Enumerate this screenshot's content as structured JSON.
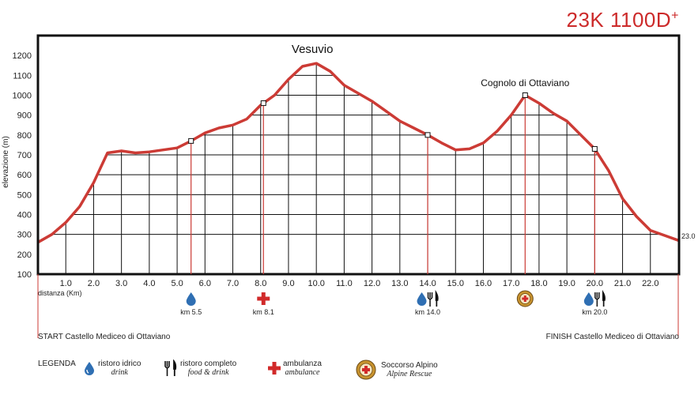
{
  "title": {
    "main": "23K 1100D",
    "sup": "+"
  },
  "chart_data": {
    "type": "area",
    "ylabel": "elevazione (m)",
    "xlabel": "distanza (Km)",
    "xlim": [
      0,
      23
    ],
    "ylim": [
      100,
      1300
    ],
    "xticks": [
      "1.0",
      "2.0",
      "3.0",
      "4.0",
      "5.0",
      "6.0",
      "7.0",
      "8.0",
      "9.0",
      "10.0",
      "11.0",
      "12.0",
      "13.0",
      "14.0",
      "15.0",
      "16.0",
      "17.0",
      "18.0",
      "19.0",
      "20.0",
      "21.0",
      "22.0"
    ],
    "yticks": [
      "100",
      "200",
      "300",
      "400",
      "500",
      "600",
      "700",
      "800",
      "900",
      "1000",
      "1100",
      "1200"
    ],
    "x": [
      0,
      0.5,
      1.0,
      1.5,
      2.0,
      2.5,
      3.0,
      3.5,
      4.0,
      4.5,
      5.0,
      5.5,
      6.0,
      6.5,
      7.0,
      7.5,
      8.0,
      8.5,
      9.0,
      9.5,
      10.0,
      10.5,
      11.0,
      11.5,
      12.0,
      12.5,
      13.0,
      13.5,
      14.0,
      14.5,
      15.0,
      15.5,
      16.0,
      16.5,
      17.0,
      17.5,
      18.0,
      18.5,
      19.0,
      19.5,
      20.0,
      20.5,
      21.0,
      21.5,
      22.0,
      22.5,
      23.0
    ],
    "y": [
      260,
      300,
      360,
      440,
      560,
      710,
      720,
      710,
      715,
      725,
      735,
      770,
      810,
      835,
      850,
      880,
      950,
      1000,
      1080,
      1145,
      1160,
      1120,
      1050,
      1010,
      970,
      920,
      870,
      835,
      800,
      760,
      725,
      730,
      760,
      820,
      900,
      1000,
      960,
      910,
      870,
      800,
      730,
      620,
      480,
      390,
      320,
      295,
      270
    ],
    "end_label": "23.0",
    "peaks": [
      {
        "name": "Vesuvio",
        "x": 10.0,
        "y": 1160
      },
      {
        "name": "Cognolo di Ottaviano",
        "x": 17.5,
        "y": 1000
      }
    ],
    "stations": [
      {
        "km": 5.5,
        "label": "km 5.5",
        "types": [
          "drink"
        ]
      },
      {
        "km": 8.1,
        "label": "km 8.1",
        "types": [
          "ambulance"
        ]
      },
      {
        "km": 14.0,
        "label": "km 14.0",
        "types": [
          "drink",
          "food"
        ]
      },
      {
        "km": 17.5,
        "label": "",
        "types": [
          "rescue"
        ]
      },
      {
        "km": 20.0,
        "label": "km 20.0",
        "types": [
          "drink",
          "food"
        ]
      }
    ]
  },
  "start_label": "START Castello Mediceo di Ottaviano",
  "finish_label": "FINISH Castello Mediceo di Ottaviano",
  "legend": {
    "title": "LEGENDA",
    "items": [
      {
        "icon": "water-drop-icon",
        "label": "ristoro idrico",
        "sub": "drink"
      },
      {
        "icon": "fork-knife-icon",
        "label": "ristoro completo",
        "sub": "food & drink"
      },
      {
        "icon": "red-cross-icon",
        "label": "ambulanza",
        "sub": "ambulance"
      },
      {
        "icon": "alpine-rescue-badge-icon",
        "label": "Soccorso Alpino",
        "sub": "Alpine Rescue"
      }
    ]
  },
  "colors": {
    "line": "#cc3b35",
    "accent": "#d12a2a",
    "drop": "#2f6fb3",
    "grid": "#111111"
  }
}
